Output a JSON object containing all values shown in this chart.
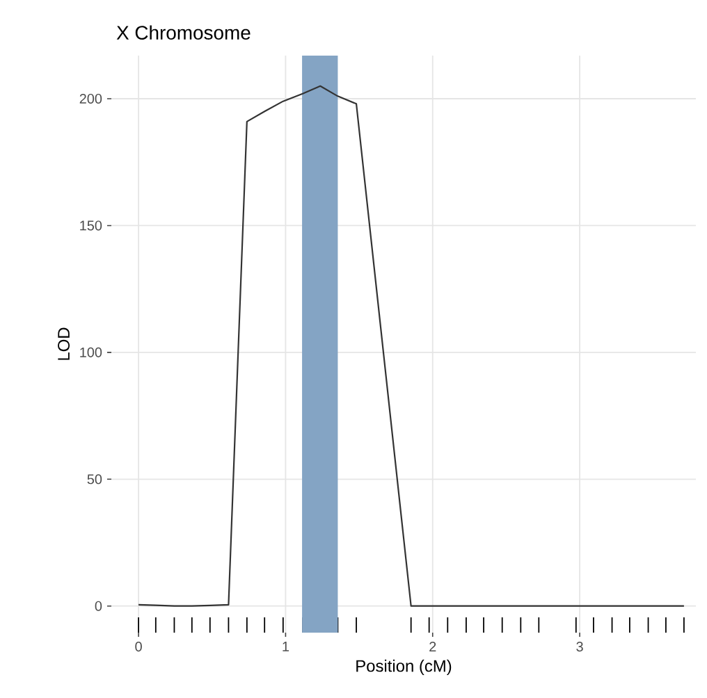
{
  "chart_data": {
    "type": "line",
    "title": "X Chromosome",
    "xlabel": "Position (cM)",
    "ylabel": "LOD",
    "xlim": [
      -0.185,
      3.79
    ],
    "ylim": [
      -10.5,
      217
    ],
    "xticks": [
      0,
      1,
      2,
      3,
      {
        "value": 0.0,
        "label": null
      },
      {
        "value": 0.117,
        "label": null
      },
      {
        "value": 0.243,
        "label": null
      },
      {
        "value": 0.363,
        "label": null
      },
      {
        "value": 0.486,
        "label": null
      },
      {
        "value": 0.612,
        "label": null
      },
      {
        "value": 0.737,
        "label": null
      },
      {
        "value": 0.857,
        "label": null
      },
      {
        "value": 0.983,
        "label": null
      },
      {
        "value": 1.116,
        "label": null
      },
      {
        "value": 1.236,
        "label": null
      },
      {
        "value": 1.355,
        "label": null
      },
      {
        "value": 1.481,
        "label": null
      },
      {
        "value": 1.853,
        "label": null
      },
      {
        "value": 1.976,
        "label": null
      },
      {
        "value": 2.102,
        "label": null
      },
      {
        "value": 2.228,
        "label": null
      },
      {
        "value": 2.347,
        "label": null
      },
      {
        "value": 2.473,
        "label": null
      },
      {
        "value": 2.599,
        "label": null
      },
      {
        "value": 2.722,
        "label": null
      },
      {
        "value": 2.975,
        "label": null
      },
      {
        "value": 3.094,
        "label": null
      },
      {
        "value": 3.22,
        "label": null
      },
      {
        "value": 3.34,
        "label": null
      },
      {
        "value": 3.466,
        "label": null
      },
      {
        "value": 3.586,
        "label": null
      },
      {
        "value": 3.709,
        "label": null
      }
    ],
    "yticks": [
      0,
      50,
      100,
      150,
      200
    ],
    "grid": true,
    "bands": [
      {
        "axis": "x",
        "from": 1.112,
        "to": 1.355,
        "color": "#84a4c4"
      }
    ],
    "series": [
      {
        "color": "#333333",
        "x": [
          0.0,
          0.117,
          0.243,
          0.363,
          0.486,
          0.612,
          0.737,
          0.857,
          0.983,
          1.116,
          1.236,
          1.355,
          1.481,
          1.853,
          1.976,
          2.102,
          2.228,
          2.347,
          2.473,
          2.599,
          2.722,
          2.975,
          3.094,
          3.22,
          3.34,
          3.466,
          3.586,
          3.709
        ],
        "values": [
          0.5,
          0.3,
          0,
          0,
          0.2,
          0.5,
          191,
          195,
          199,
          202,
          205,
          201,
          198,
          0,
          0,
          0,
          0,
          0,
          0,
          0,
          0,
          0,
          0,
          0,
          0,
          0,
          0,
          0
        ]
      }
    ]
  }
}
